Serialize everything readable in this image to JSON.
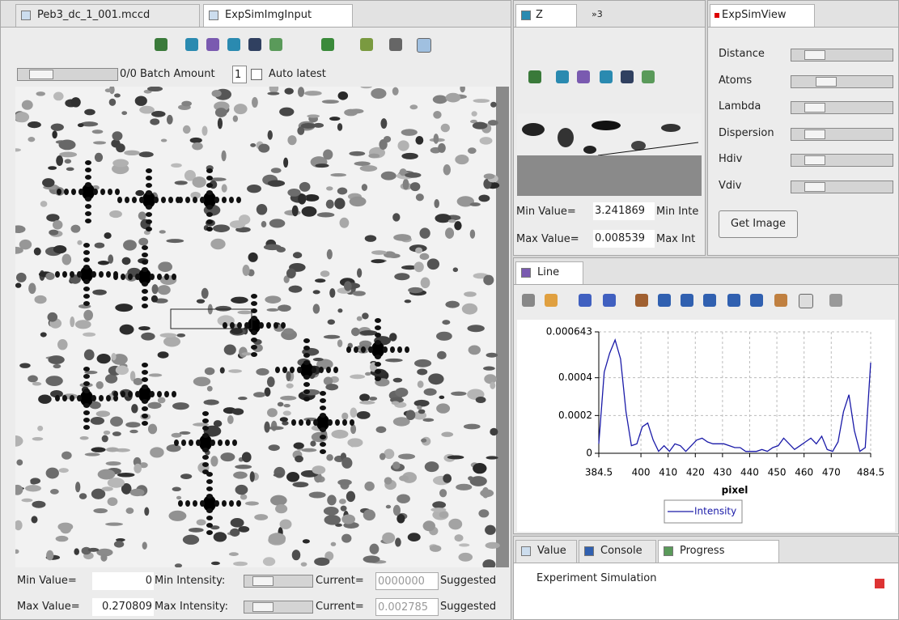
{
  "left_panel": {
    "tabs": [
      "Peb3_dc_1_001.mccd",
      "ExpSimImgInput"
    ],
    "slider_text": "0/0",
    "batch_label": "Batch Amount",
    "batch_value": "1",
    "auto_latest": "Auto latest",
    "min_value_label": "Min Value=",
    "min_value": "0",
    "min_intensity_label": "Min Intensity:",
    "current_label": "Current=",
    "min_current": "0000000",
    "suggested": "Suggested",
    "max_value_label": "Max Value=",
    "max_value": "0.270809",
    "max_intensity_label": "Max Intensity:",
    "max_current": "0.002785"
  },
  "z_panel": {
    "tabs": [
      "Z",
      "»3"
    ],
    "min_value_label": "Min Value=",
    "min_value": "3.241869",
    "min_intensity_label": "Min Inte",
    "max_value_label": "Max Value=",
    "max_value": "0.008539",
    "max_intensity_label": "Max Int"
  },
  "view_panel": {
    "title": "ExpSimView",
    "sliders": [
      "Distance",
      "Atoms",
      "Lambda",
      "Dispersion",
      "Hdiv",
      "Vdiv"
    ],
    "button": "Get Image"
  },
  "line_panel": {
    "tab": "Line"
  },
  "chart_data": {
    "type": "line",
    "x_label": "pixel",
    "x": [
      384.5,
      386.5,
      388.5,
      390.5,
      392.5,
      394.5,
      396.5,
      398.5,
      400.5,
      402.5,
      404.5,
      406.5,
      408.5,
      410.5,
      412.5,
      414.5,
      416.5,
      418.5,
      420.5,
      422.5,
      424.5,
      426.5,
      428.5,
      430.5,
      432.5,
      434.5,
      436.5,
      438.5,
      440.5,
      442.5,
      444.5,
      446.5,
      448.5,
      450.5,
      452.5,
      454.5,
      456.5,
      458.5,
      460.5,
      462.5,
      464.5,
      466.5,
      468.5,
      470.5,
      472.5,
      474.5,
      476.5,
      478.5,
      480.5,
      482.5,
      484.5
    ],
    "series": [
      {
        "name": "Intensity",
        "color": "#1a1aa8",
        "values": [
          5e-05,
          0.00043,
          0.00053,
          0.0006,
          0.0005,
          0.00022,
          4e-05,
          5e-05,
          0.00014,
          0.00016,
          7e-05,
          1e-05,
          4e-05,
          1e-05,
          5e-05,
          4e-05,
          1e-05,
          4e-05,
          7e-05,
          8e-05,
          6e-05,
          5e-05,
          5e-05,
          5e-05,
          4e-05,
          3e-05,
          3e-05,
          1e-05,
          1e-05,
          1e-05,
          2e-05,
          1e-05,
          3e-05,
          4e-05,
          8e-05,
          5e-05,
          2e-05,
          4e-05,
          6e-05,
          8e-05,
          5e-05,
          9e-05,
          2e-05,
          1e-05,
          6e-05,
          0.00022,
          0.00031,
          0.00012,
          1e-05,
          3e-05,
          0.00048
        ]
      }
    ],
    "xlim": [
      384.5,
      484.5
    ],
    "xticks": [
      384.5,
      400,
      410,
      420,
      430,
      440,
      450,
      460,
      470,
      484.5
    ],
    "ylim": [
      0,
      0.000643
    ],
    "yticks": [
      0,
      0.0002,
      0.0004,
      0.000643
    ],
    "grid": true
  },
  "progress_panel": {
    "tabs": [
      "Value",
      "Console",
      "Progress"
    ],
    "task": "Experiment Simulation"
  }
}
